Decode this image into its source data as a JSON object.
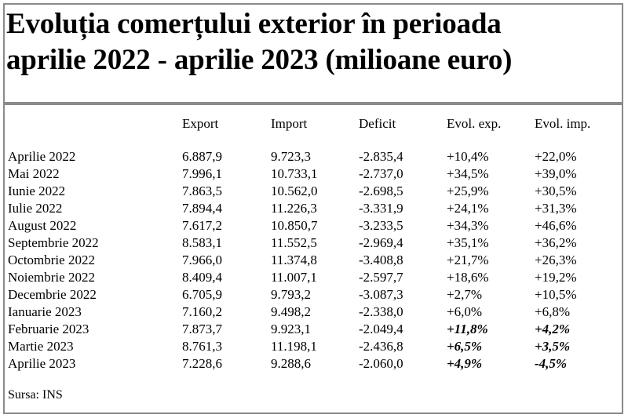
{
  "title": {
    "line1": "Evoluția comerțului exterior în perioada",
    "line2": "aprilie 2022 - aprilie 2023 (milioane euro)"
  },
  "columns": [
    "Export",
    "Import",
    "Deficit",
    "Evol. exp.",
    "Evol. imp."
  ],
  "rows": [
    {
      "month": "Aprilie 2022",
      "export": "6.887,9",
      "import": "9.723,3",
      "deficit": "-2.835,4",
      "evol_exp": "+10,4%",
      "evol_imp": "+22,0%",
      "emph": false
    },
    {
      "month": "Mai 2022",
      "export": "7.996,1",
      "import": "10.733,1",
      "deficit": "-2.737,0",
      "evol_exp": "+34,5%",
      "evol_imp": "+39,0%",
      "emph": false
    },
    {
      "month": "Iunie 2022",
      "export": "7.863,5",
      "import": "10.562,0",
      "deficit": "-2.698,5",
      "evol_exp": "+25,9%",
      "evol_imp": "+30,5%",
      "emph": false
    },
    {
      "month": "Iulie 2022",
      "export": "7.894,4",
      "import": "11.226,3",
      "deficit": "-3.331,9",
      "evol_exp": "+24,1%",
      "evol_imp": "+31,3%",
      "emph": false
    },
    {
      "month": "August 2022",
      "export": "7.617,2",
      "import": "10.850,7",
      "deficit": "-3.233,5",
      "evol_exp": "+34,3%",
      "evol_imp": "+46,6%",
      "emph": false
    },
    {
      "month": "Septembrie 2022",
      "export": "8.583,1",
      "import": "11.552,5",
      "deficit": "-2.969,4",
      "evol_exp": "+35,1%",
      "evol_imp": "+36,2%",
      "emph": false
    },
    {
      "month": "Octombrie 2022",
      "export": "7.966,0",
      "import": "11.374,8",
      "deficit": "-3.408,8",
      "evol_exp": "+21,7%",
      "evol_imp": "+26,3%",
      "emph": false
    },
    {
      "month": "Noiembrie 2022",
      "export": "8.409,4",
      "import": "11.007,1",
      "deficit": "-2.597,7",
      "evol_exp": "+18,6%",
      "evol_imp": "+19,2%",
      "emph": false
    },
    {
      "month": "Decembrie 2022",
      "export": "6.705,9",
      "import": "9.793,2",
      "deficit": "-3.087,3",
      "evol_exp": "+2,7%",
      "evol_imp": "+10,5%",
      "emph": false
    },
    {
      "month": "Ianuarie 2023",
      "export": "7.160,2",
      "import": "9.498,2",
      "deficit": "-2.338,0",
      "evol_exp": "+6,0%",
      "evol_imp": "+6,8%",
      "emph": false
    },
    {
      "month": "Februarie 2023",
      "export": "7.873,7",
      "import": "9.923,1",
      "deficit": "-2.049,4",
      "evol_exp": "+11,8%",
      "evol_imp": "+4,2%",
      "emph": true
    },
    {
      "month": "Martie 2023",
      "export": "8.761,3",
      "import": "11.198,1",
      "deficit": "-2.436,8",
      "evol_exp": "+6,5%",
      "evol_imp": "+3,5%",
      "emph": true
    },
    {
      "month": "Aprilie 2023",
      "export": "7.228,6",
      "import": "9.288,6",
      "deficit": "-2.060,0",
      "evol_exp": "+4,9%",
      "evol_imp": "-4,5%",
      "emph": true
    }
  ],
  "source": "Sursa: INS"
}
